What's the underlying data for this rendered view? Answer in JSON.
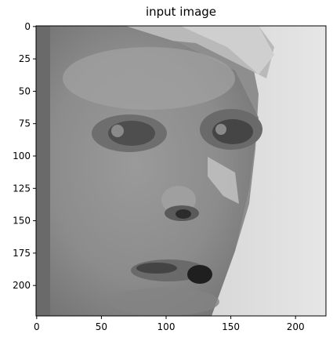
{
  "title": "input image",
  "image_description_kind": "grayscale pixelated face",
  "axes": {
    "x_ticks": [
      "0",
      "50",
      "100",
      "150",
      "200"
    ],
    "y_ticks": [
      "0",
      "25",
      "50",
      "75",
      "100",
      "125",
      "150",
      "175",
      "200"
    ],
    "x_tick_values": [
      0,
      50,
      100,
      150,
      200
    ],
    "y_tick_values": [
      0,
      25,
      50,
      75,
      100,
      125,
      150,
      175,
      200
    ],
    "x_range": [
      -0.5,
      223.5
    ],
    "y_range": [
      -0.5,
      223.5
    ]
  },
  "colors": {
    "axis": "#000000",
    "background": "#ffffff"
  }
}
